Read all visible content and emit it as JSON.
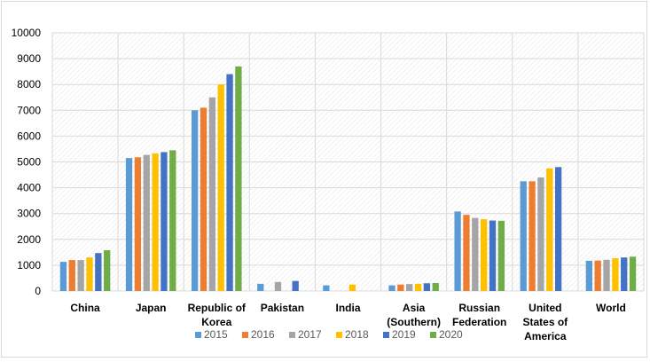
{
  "chart_data": {
    "type": "bar",
    "categories": [
      [
        "China"
      ],
      [
        "Japan"
      ],
      [
        "Republic of",
        "Korea"
      ],
      [
        "Pakistan"
      ],
      [
        "India"
      ],
      [
        "Asia",
        "(Southern)"
      ],
      [
        "Russian",
        "Federation"
      ],
      [
        "United",
        "States of",
        "America"
      ],
      [
        "World"
      ]
    ],
    "series": [
      {
        "name": "2015",
        "color": "#5b9bd5",
        "values": [
          1130,
          5150,
          7000,
          280,
          220,
          220,
          3080,
          4250,
          1170
        ]
      },
      {
        "name": "2016",
        "color": "#ed7d31",
        "values": [
          1200,
          5180,
          7100,
          null,
          null,
          250,
          2950,
          4250,
          1180
        ]
      },
      {
        "name": "2017",
        "color": "#a5a5a5",
        "values": [
          1200,
          5270,
          7500,
          350,
          null,
          270,
          2830,
          4400,
          1210
        ]
      },
      {
        "name": "2018",
        "color": "#ffc000",
        "values": [
          1300,
          5330,
          8000,
          null,
          250,
          280,
          2780,
          4750,
          1270
        ]
      },
      {
        "name": "2019",
        "color": "#4472c4",
        "values": [
          1470,
          5380,
          8400,
          390,
          null,
          300,
          2730,
          4800,
          1300
        ]
      },
      {
        "name": "2020",
        "color": "#70ad47",
        "values": [
          1580,
          5450,
          8700,
          null,
          null,
          310,
          2720,
          null,
          1330
        ]
      }
    ],
    "ylim": [
      0,
      10000
    ],
    "yticks": [
      0,
      1000,
      2000,
      3000,
      4000,
      5000,
      6000,
      7000,
      8000,
      9000,
      10000
    ],
    "grid": true,
    "legend_position": "bottom"
  }
}
